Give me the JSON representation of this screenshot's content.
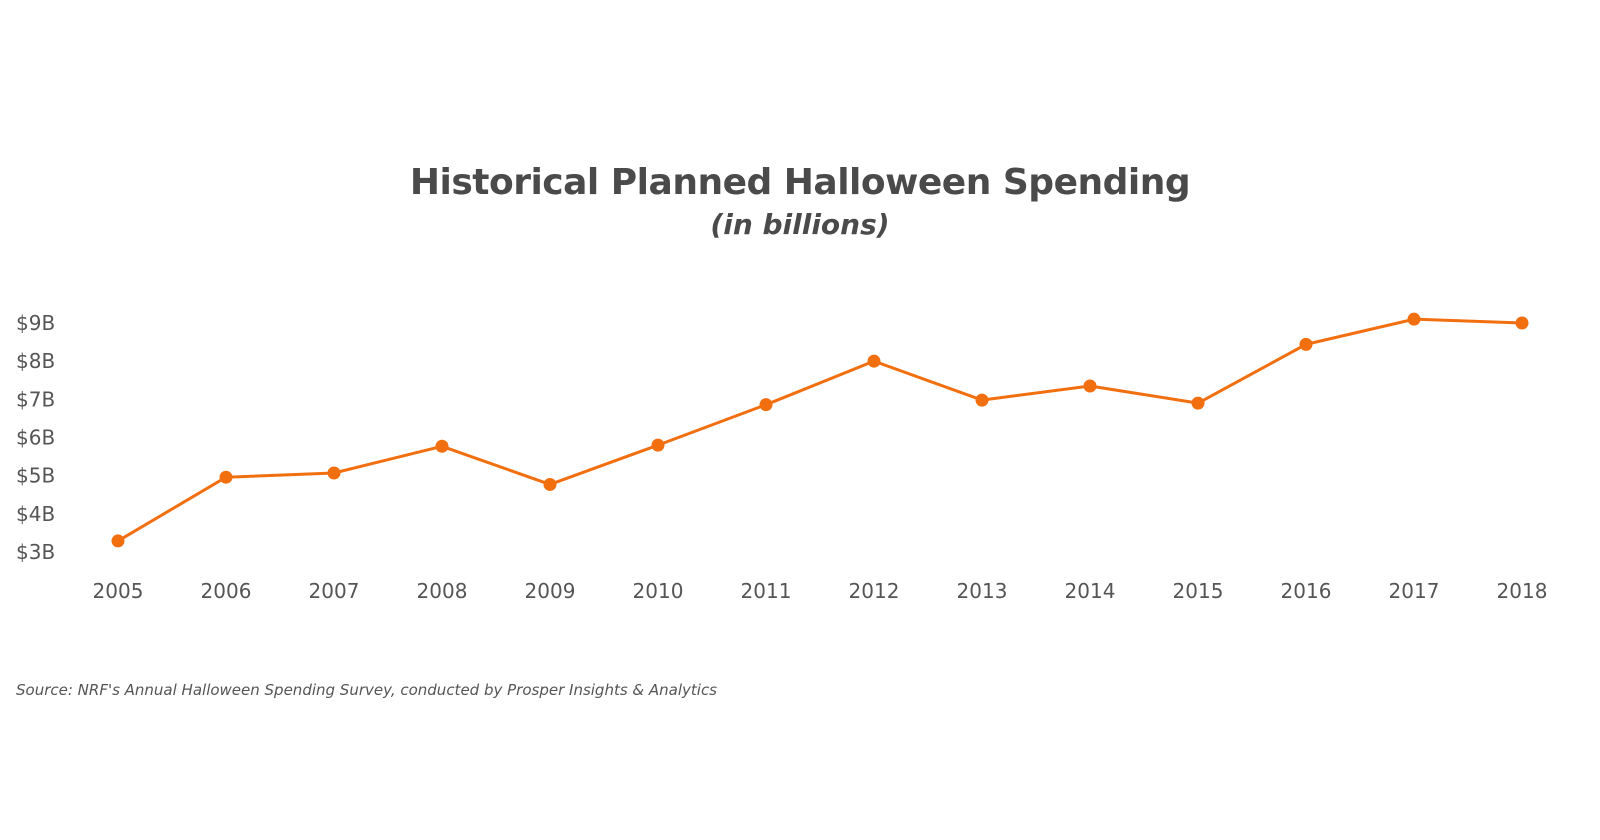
{
  "chart_data": {
    "type": "line",
    "title": "Historical Planned Halloween Spending",
    "subtitle": "(in billions)",
    "x": [
      "2005",
      "2006",
      "2007",
      "2008",
      "2009",
      "2010",
      "2011",
      "2012",
      "2013",
      "2014",
      "2015",
      "2016",
      "2017",
      "2018"
    ],
    "series": [
      {
        "values": [
          3.29,
          4.96,
          5.07,
          5.77,
          4.77,
          5.8,
          6.86,
          8.0,
          6.98,
          7.35,
          6.9,
          8.44,
          9.1,
          9.0
        ]
      }
    ],
    "y_ticks": [
      "$3B",
      "$4B",
      "$5B",
      "$6B",
      "$7B",
      "$8B",
      "$9B"
    ],
    "y_tick_values": [
      3,
      4,
      5,
      6,
      7,
      8,
      9
    ],
    "ylim": [
      3,
      9
    ],
    "grid": false,
    "legend": "none",
    "line_color": "#f26f10",
    "source": "Source: NRF's Annual Halloween Spending Survey, conducted by Prosper Insights & Analytics"
  }
}
